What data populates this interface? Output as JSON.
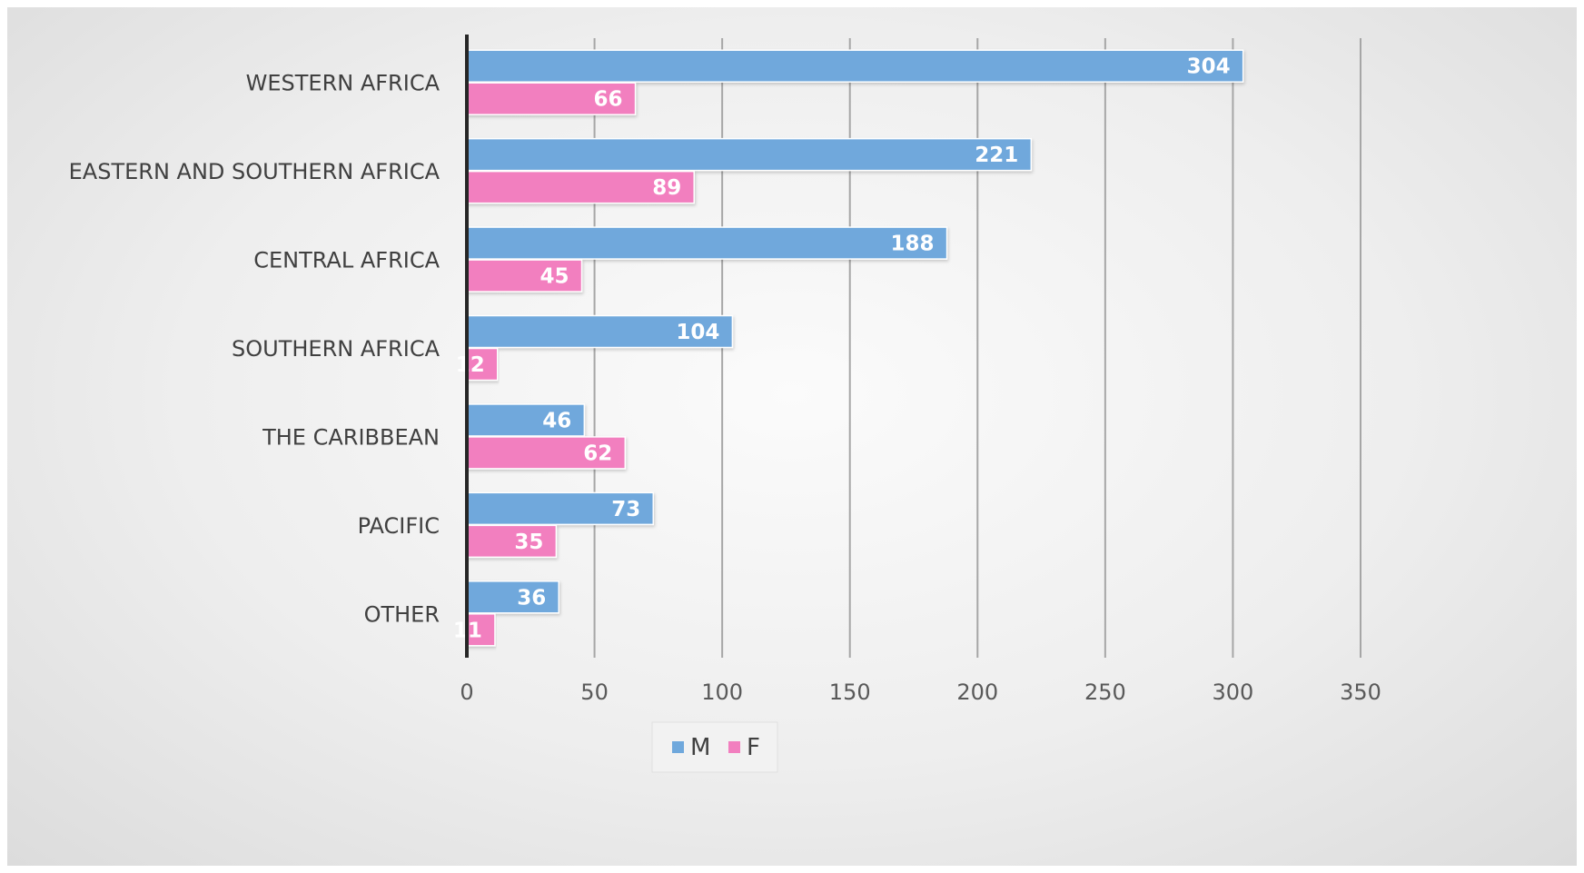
{
  "chart_data": {
    "type": "bar",
    "orientation": "horizontal",
    "categories": [
      "WESTERN AFRICA",
      "EASTERN AND SOUTHERN AFRICA",
      "CENTRAL AFRICA",
      "SOUTHERN AFRICA",
      "THE CARIBBEAN",
      "PACIFIC",
      "OTHER"
    ],
    "series": [
      {
        "name": "M",
        "color": "#6fa8dc",
        "values": [
          304,
          221,
          188,
          104,
          46,
          73,
          36
        ]
      },
      {
        "name": "F",
        "color": "#f27fbf",
        "values": [
          66,
          89,
          45,
          12,
          62,
          35,
          11
        ]
      }
    ],
    "xlim": [
      0,
      350
    ],
    "xticks": [
      "0",
      "50",
      "100",
      "150",
      "200",
      "250",
      "300",
      "350"
    ],
    "grid": true,
    "data_labels": true,
    "legend_position": "bottom"
  }
}
